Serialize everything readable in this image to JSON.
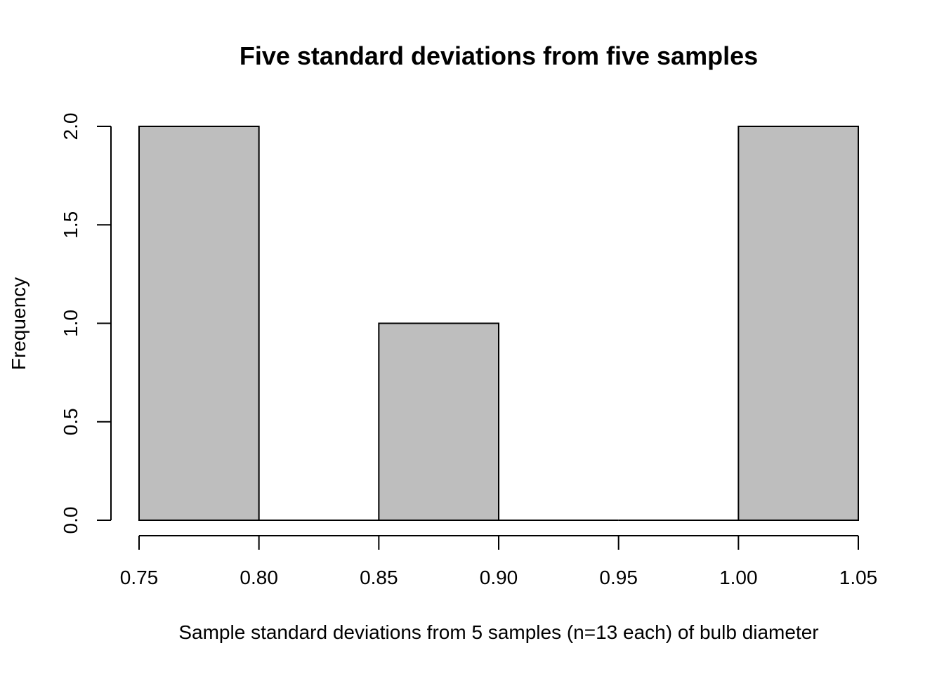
{
  "chart_data": {
    "type": "bar",
    "title": "Five standard deviations from five samples",
    "xlabel": "Sample standard deviations from 5 samples (n=13 each) of bulb diameter",
    "ylabel": "Frequency",
    "bins": [
      {
        "from": 0.75,
        "to": 0.8,
        "count": 2
      },
      {
        "from": 0.8,
        "to": 0.85,
        "count": 0
      },
      {
        "from": 0.85,
        "to": 0.9,
        "count": 1
      },
      {
        "from": 0.9,
        "to": 0.95,
        "count": 0
      },
      {
        "from": 0.95,
        "to": 1.0,
        "count": 0
      },
      {
        "from": 1.0,
        "to": 1.05,
        "count": 2
      }
    ],
    "xlim": [
      0.75,
      1.05
    ],
    "ylim": [
      0,
      2
    ],
    "x_ticks": [
      "0.75",
      "0.80",
      "0.85",
      "0.90",
      "0.95",
      "1.00",
      "1.05"
    ],
    "y_ticks": [
      "0.0",
      "0.5",
      "1.0",
      "1.5",
      "2.0"
    ],
    "bar_color": "#bebebe",
    "grid": false
  }
}
